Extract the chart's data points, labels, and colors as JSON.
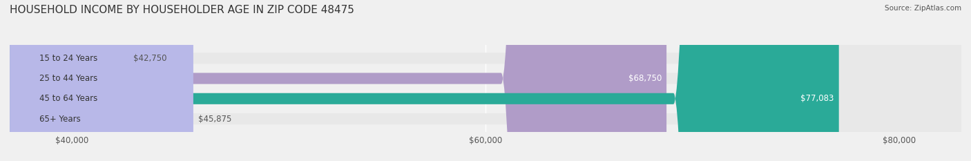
{
  "title": "HOUSEHOLD INCOME BY HOUSEHOLDER AGE IN ZIP CODE 48475",
  "source": "Source: ZipAtlas.com",
  "categories": [
    "15 to 24 Years",
    "25 to 44 Years",
    "45 to 64 Years",
    "65+ Years"
  ],
  "values": [
    42750,
    68750,
    77083,
    45875
  ],
  "bar_colors": [
    "#a8c8e8",
    "#b09cc8",
    "#2aaa98",
    "#b8b8e8"
  ],
  "value_labels": [
    "$42,750",
    "$68,750",
    "$77,083",
    "$45,875"
  ],
  "xmin": 37000,
  "xmax": 83000,
  "xticks": [
    40000,
    60000,
    80000
  ],
  "xticklabels": [
    "$40,000",
    "$60,000",
    "$80,000"
  ],
  "background_color": "#f0f0f0",
  "bar_background_color": "#e8e8e8",
  "title_fontsize": 11,
  "label_fontsize": 8.5,
  "value_fontsize": 8.5,
  "bar_height": 0.55
}
